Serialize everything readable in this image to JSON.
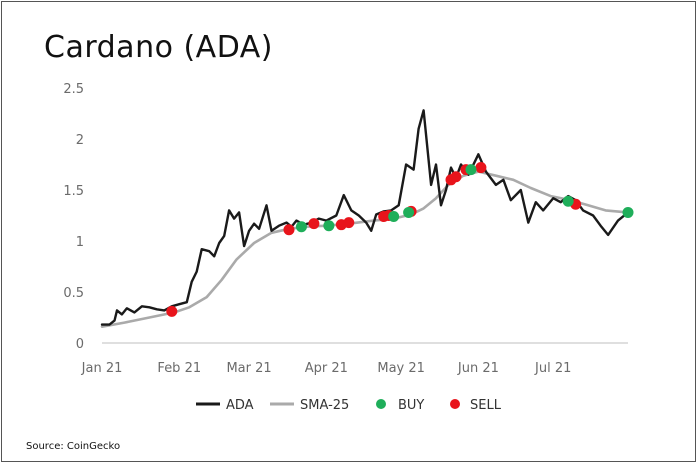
{
  "chart_data": {
    "type": "line",
    "title": "Cardano (ADA)",
    "source": "Source: CoinGecko",
    "ylim": [
      0,
      2.5
    ],
    "y_ticks": [
      "0",
      "0.5",
      "1",
      "1.5",
      "2",
      "2.5"
    ],
    "x_ticks": [
      "Jan 21",
      "Feb 21",
      "Mar 21",
      "Apr 21",
      "May 21",
      "Jun 21",
      "Jul 21"
    ],
    "x_range": [
      "2021-01-01",
      "2021-07-31"
    ],
    "grid": false,
    "legend_position": "bottom",
    "legend": [
      "ADA",
      "SMA-25",
      "BUY",
      "SELL"
    ],
    "colors": {
      "ada": "#1a1a1a",
      "sma": "#aaaaaa",
      "buy": "#1fae5a",
      "sell": "#e8141b"
    },
    "series": [
      {
        "name": "ADA",
        "x": [
          "2021-01-01",
          "2021-01-04",
          "2021-01-06",
          "2021-01-07",
          "2021-01-09",
          "2021-01-11",
          "2021-01-14",
          "2021-01-17",
          "2021-01-20",
          "2021-01-23",
          "2021-01-26",
          "2021-01-29",
          "2021-02-01",
          "2021-02-04",
          "2021-02-06",
          "2021-02-08",
          "2021-02-10",
          "2021-02-13",
          "2021-02-15",
          "2021-02-17",
          "2021-02-19",
          "2021-02-21",
          "2021-02-23",
          "2021-02-25",
          "2021-02-27",
          "2021-03-01",
          "2021-03-03",
          "2021-03-05",
          "2021-03-08",
          "2021-03-10",
          "2021-03-13",
          "2021-03-16",
          "2021-03-18",
          "2021-03-20",
          "2021-03-23",
          "2021-03-26",
          "2021-03-29",
          "2021-04-01",
          "2021-04-05",
          "2021-04-08",
          "2021-04-11",
          "2021-04-14",
          "2021-04-17",
          "2021-04-19",
          "2021-04-21",
          "2021-04-24",
          "2021-04-27",
          "2021-04-30",
          "2021-05-03",
          "2021-05-06",
          "2021-05-08",
          "2021-05-10",
          "2021-05-13",
          "2021-05-15",
          "2021-05-17",
          "2021-05-19",
          "2021-05-21",
          "2021-05-23",
          "2021-05-25",
          "2021-05-28",
          "2021-06-01",
          "2021-06-04",
          "2021-06-08",
          "2021-06-11",
          "2021-06-14",
          "2021-06-18",
          "2021-06-21",
          "2021-06-24",
          "2021-06-27",
          "2021-07-01",
          "2021-07-04",
          "2021-07-07",
          "2021-07-10",
          "2021-07-13",
          "2021-07-17",
          "2021-07-20",
          "2021-07-23",
          "2021-07-27",
          "2021-07-31"
        ],
        "y": [
          0.18,
          0.18,
          0.22,
          0.32,
          0.28,
          0.34,
          0.3,
          0.36,
          0.35,
          0.33,
          0.32,
          0.36,
          0.38,
          0.4,
          0.6,
          0.7,
          0.92,
          0.9,
          0.85,
          0.98,
          1.05,
          1.3,
          1.22,
          1.28,
          0.95,
          1.1,
          1.17,
          1.12,
          1.35,
          1.1,
          1.15,
          1.18,
          1.14,
          1.2,
          1.16,
          1.18,
          1.22,
          1.2,
          1.25,
          1.45,
          1.3,
          1.25,
          1.18,
          1.1,
          1.26,
          1.29,
          1.3,
          1.35,
          1.75,
          1.7,
          2.1,
          2.28,
          1.55,
          1.75,
          1.35,
          1.5,
          1.72,
          1.62,
          1.75,
          1.65,
          1.85,
          1.68,
          1.55,
          1.6,
          1.4,
          1.5,
          1.18,
          1.38,
          1.3,
          1.42,
          1.38,
          1.44,
          1.4,
          1.3,
          1.25,
          1.15,
          1.06,
          1.2,
          1.28
        ]
      },
      {
        "name": "SMA-25",
        "x": [
          "2021-01-01",
          "2021-01-10",
          "2021-01-20",
          "2021-01-30",
          "2021-02-05",
          "2021-02-12",
          "2021-02-18",
          "2021-02-24",
          "2021-03-03",
          "2021-03-10",
          "2021-03-17",
          "2021-03-24",
          "2021-04-01",
          "2021-04-10",
          "2021-04-20",
          "2021-04-28",
          "2021-05-05",
          "2021-05-10",
          "2021-05-15",
          "2021-05-20",
          "2021-05-26",
          "2021-06-01",
          "2021-06-08",
          "2021-06-15",
          "2021-06-22",
          "2021-06-30",
          "2021-07-08",
          "2021-07-15",
          "2021-07-22",
          "2021-07-31"
        ],
        "y": [
          0.16,
          0.2,
          0.25,
          0.3,
          0.35,
          0.45,
          0.62,
          0.82,
          0.98,
          1.08,
          1.12,
          1.14,
          1.15,
          1.17,
          1.2,
          1.22,
          1.26,
          1.32,
          1.42,
          1.55,
          1.64,
          1.68,
          1.64,
          1.6,
          1.52,
          1.44,
          1.4,
          1.35,
          1.3,
          1.28
        ]
      }
    ],
    "markers": {
      "buy": [
        {
          "x": "2021-03-22",
          "y": 1.14
        },
        {
          "x": "2021-04-02",
          "y": 1.15
        },
        {
          "x": "2021-04-28",
          "y": 1.24
        },
        {
          "x": "2021-05-04",
          "y": 1.28
        },
        {
          "x": "2021-05-29",
          "y": 1.7
        },
        {
          "x": "2021-07-07",
          "y": 1.39
        },
        {
          "x": "2021-07-31",
          "y": 1.28
        }
      ],
      "sell": [
        {
          "x": "2021-01-29",
          "y": 0.31
        },
        {
          "x": "2021-03-17",
          "y": 1.11
        },
        {
          "x": "2021-03-27",
          "y": 1.17
        },
        {
          "x": "2021-04-07",
          "y": 1.16
        },
        {
          "x": "2021-04-10",
          "y": 1.18
        },
        {
          "x": "2021-04-24",
          "y": 1.24
        },
        {
          "x": "2021-04-26",
          "y": 1.25
        },
        {
          "x": "2021-05-05",
          "y": 1.29
        },
        {
          "x": "2021-05-21",
          "y": 1.6
        },
        {
          "x": "2021-05-23",
          "y": 1.63
        },
        {
          "x": "2021-05-27",
          "y": 1.7
        },
        {
          "x": "2021-06-02",
          "y": 1.72
        },
        {
          "x": "2021-07-10",
          "y": 1.36
        }
      ]
    }
  }
}
